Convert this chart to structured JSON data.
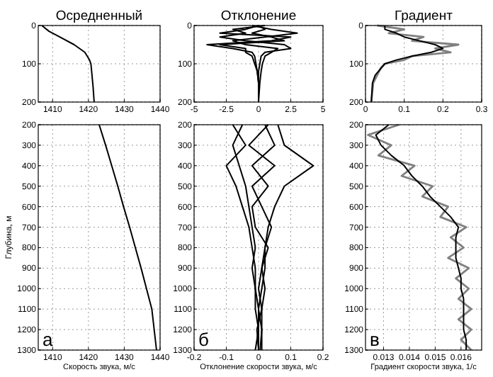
{
  "chart_data": [
    {
      "type": "line",
      "title": "Осредненный",
      "xlim": [
        1406,
        1440
      ],
      "xticks": [
        1410,
        1420,
        1430,
        1440
      ],
      "ylim": [
        200,
        0
      ],
      "yticks": [
        0,
        100,
        200
      ],
      "grid": true,
      "series": [
        {
          "color": "#000000",
          "x": [
            1407,
            1409,
            1412,
            1416,
            1419,
            1420.3,
            1420.7,
            1421,
            1421.3,
            1421.6
          ],
          "values": [
            0,
            15,
            30,
            50,
            70,
            90,
            100,
            130,
            160,
            200
          ]
        }
      ]
    },
    {
      "type": "line",
      "title": "Отклонение",
      "xlim": [
        -5,
        5
      ],
      "xticks": [
        -5,
        -2.5,
        0,
        2.5,
        5
      ],
      "ylim": [
        200,
        0
      ],
      "yticks": [
        0,
        100,
        200
      ],
      "grid": true,
      "series": [
        {
          "color": "#000000",
          "x": [
            0,
            -1,
            -3,
            2.5,
            1,
            -4,
            -2,
            -0.5,
            -0.3,
            -0.2,
            -0.1,
            0,
            0
          ],
          "values": [
            0,
            10,
            20,
            30,
            40,
            50,
            60,
            70,
            80,
            100,
            120,
            150,
            200
          ]
        },
        {
          "color": "#000000",
          "x": [
            -0.5,
            1,
            3,
            0.5,
            -2,
            -1,
            1.5,
            1,
            0.5,
            0.3,
            0.2,
            0.1,
            0
          ],
          "values": [
            0,
            10,
            20,
            30,
            40,
            50,
            60,
            70,
            80,
            100,
            120,
            150,
            200
          ]
        },
        {
          "color": "#000000",
          "x": [
            0.5,
            -2,
            -1,
            -3,
            -1,
            2,
            2.5,
            0.5,
            0.2,
            0.1,
            0,
            0,
            0
          ],
          "values": [
            0,
            10,
            20,
            30,
            40,
            50,
            60,
            70,
            80,
            100,
            120,
            150,
            200
          ]
        },
        {
          "color": "#000000",
          "x": [
            0,
            0.5,
            -0.5,
            1,
            2,
            -3,
            -1,
            -1,
            -0.5,
            -0.3,
            -0.1,
            0,
            0
          ],
          "values": [
            0,
            10,
            20,
            30,
            40,
            50,
            60,
            70,
            80,
            100,
            120,
            150,
            200
          ]
        }
      ]
    },
    {
      "type": "line",
      "title": "Градиент",
      "xlim": [
        0,
        0.3
      ],
      "xticks": [
        0,
        0.1,
        0.2,
        0.3
      ],
      "ylim": [
        200,
        0
      ],
      "yticks": [
        0,
        100,
        200
      ],
      "grid": true,
      "series": [
        {
          "color": "#808080",
          "x": [
            0.03,
            0.1,
            0.06,
            0.15,
            0.12,
            0.24,
            0.18,
            0.22,
            0.12,
            0.1,
            0.05,
            0.04,
            0.02,
            0.015
          ],
          "values": [
            0,
            10,
            20,
            30,
            40,
            50,
            60,
            70,
            80,
            90,
            100,
            110,
            150,
            200
          ]
        },
        {
          "color": "#000000",
          "x": [
            0.05,
            0.05,
            0.08,
            0.1,
            0.14,
            0.18,
            0.2,
            0.17,
            0.12,
            0.08,
            0.05,
            0.025,
            0.018,
            0.015
          ],
          "values": [
            0,
            10,
            20,
            30,
            40,
            50,
            60,
            70,
            80,
            90,
            100,
            130,
            150,
            200
          ]
        }
      ]
    },
    {
      "type": "line",
      "xlabel": "Скорость звука, м/с",
      "ylabel": "Глубина, м",
      "annotations": [
        "а"
      ],
      "xlim": [
        1406,
        1440
      ],
      "xticks": [
        1410,
        1420,
        1430,
        1440
      ],
      "ylim": [
        1300,
        200
      ],
      "yticks": [
        200,
        300,
        400,
        500,
        600,
        700,
        800,
        900,
        1000,
        1100,
        1200,
        1300
      ],
      "grid": true,
      "series": [
        {
          "color": "#000000",
          "x": [
            1423,
            1424.8,
            1426.5,
            1428.2,
            1429.8,
            1431.5,
            1433.1,
            1434.7,
            1436.2,
            1437.7,
            1439
          ],
          "values": [
            200,
            300,
            400,
            500,
            600,
            700,
            800,
            900,
            1000,
            1100,
            1300
          ]
        }
      ]
    },
    {
      "type": "line",
      "xlabel": "Отклонение скорости звука, м/с",
      "annotations": [
        "б"
      ],
      "xlim": [
        -0.2,
        0.2
      ],
      "xticks": [
        -0.2,
        -0.1,
        0,
        0.1,
        0.2
      ],
      "ylim": [
        1300,
        200
      ],
      "yticks": [
        200,
        300,
        400,
        500,
        600,
        700,
        800,
        900,
        1000,
        1100,
        1200,
        1300
      ],
      "grid": true,
      "series": [
        {
          "color": "#000000",
          "x": [
            -0.05,
            -0.08,
            -0.06,
            -0.04,
            -0.03,
            -0.02,
            -0.01,
            -0.02,
            -0.01,
            -0.01,
            0,
            -0.01
          ],
          "values": [
            200,
            300,
            400,
            500,
            600,
            700,
            800,
            900,
            1000,
            1100,
            1200,
            1300
          ]
        },
        {
          "color": "#000000",
          "x": [
            0.06,
            0.08,
            0.17,
            0.08,
            0.05,
            0.03,
            0.02,
            0.01,
            0.02,
            0.01,
            0.01,
            0.01
          ],
          "values": [
            200,
            300,
            400,
            500,
            600,
            700,
            800,
            900,
            1000,
            1100,
            1200,
            1300
          ]
        },
        {
          "color": "#000000",
          "x": [
            0.03,
            -0.03,
            0.05,
            -0.02,
            0.01,
            0.04,
            0.02,
            0.02,
            0.01,
            0,
            0.01,
            0.005
          ],
          "values": [
            200,
            300,
            400,
            500,
            600,
            700,
            800,
            900,
            1000,
            1100,
            1200,
            1300
          ]
        },
        {
          "color": "#000000",
          "x": [
            -0.08,
            -0.04,
            -0.1,
            -0.07,
            -0.05,
            -0.03,
            -0.02,
            -0.01,
            -0.01,
            0,
            0,
            0
          ],
          "values": [
            200,
            300,
            400,
            500,
            600,
            700,
            800,
            900,
            1000,
            1100,
            1200,
            1300
          ]
        },
        {
          "color": "#000000",
          "x": [
            0.02,
            0.05,
            -0.02,
            0.03,
            -0.02,
            -0.01,
            0.03,
            0.01,
            0,
            0.01,
            -0.005,
            0
          ],
          "values": [
            200,
            300,
            400,
            500,
            600,
            700,
            800,
            900,
            1000,
            1100,
            1200,
            1300
          ]
        }
      ]
    },
    {
      "type": "line",
      "xlabel": "Градиент скорости звука, 1/с",
      "annotations": [
        "в"
      ],
      "xlim": [
        0.0123,
        0.0168
      ],
      "xticks": [
        0.013,
        0.014,
        0.015,
        0.016
      ],
      "ylim": [
        1300,
        200
      ],
      "yticks": [
        200,
        300,
        400,
        500,
        600,
        700,
        800,
        900,
        1000,
        1100,
        1200,
        1300
      ],
      "grid": true,
      "series": [
        {
          "color": "#808080",
          "x": [
            0.0136,
            0.0124,
            0.0133,
            0.0128,
            0.0142,
            0.0137,
            0.0149,
            0.0145,
            0.0155,
            0.0152,
            0.0162,
            0.0156,
            0.0161,
            0.0155,
            0.0163,
            0.0158,
            0.0163,
            0.0159,
            0.0164,
            0.0159,
            0.0164,
            0.016,
            0.0164
          ],
          "values": [
            200,
            250,
            300,
            350,
            400,
            450,
            500,
            550,
            600,
            650,
            700,
            750,
            800,
            850,
            900,
            950,
            1000,
            1050,
            1100,
            1150,
            1200,
            1250,
            1300
          ]
        },
        {
          "color": "#000000",
          "x": [
            0.0132,
            0.0127,
            0.0129,
            0.0133,
            0.0138,
            0.0141,
            0.0145,
            0.0148,
            0.0152,
            0.0156,
            0.0159,
            0.0158,
            0.0158,
            0.0158,
            0.0159,
            0.016,
            0.016,
            0.0161,
            0.0161,
            0.0161,
            0.0161,
            0.0162,
            0.0162
          ],
          "values": [
            200,
            250,
            300,
            350,
            400,
            450,
            500,
            550,
            600,
            650,
            700,
            750,
            800,
            850,
            900,
            950,
            1000,
            1050,
            1100,
            1150,
            1200,
            1250,
            1300
          ]
        }
      ]
    }
  ]
}
